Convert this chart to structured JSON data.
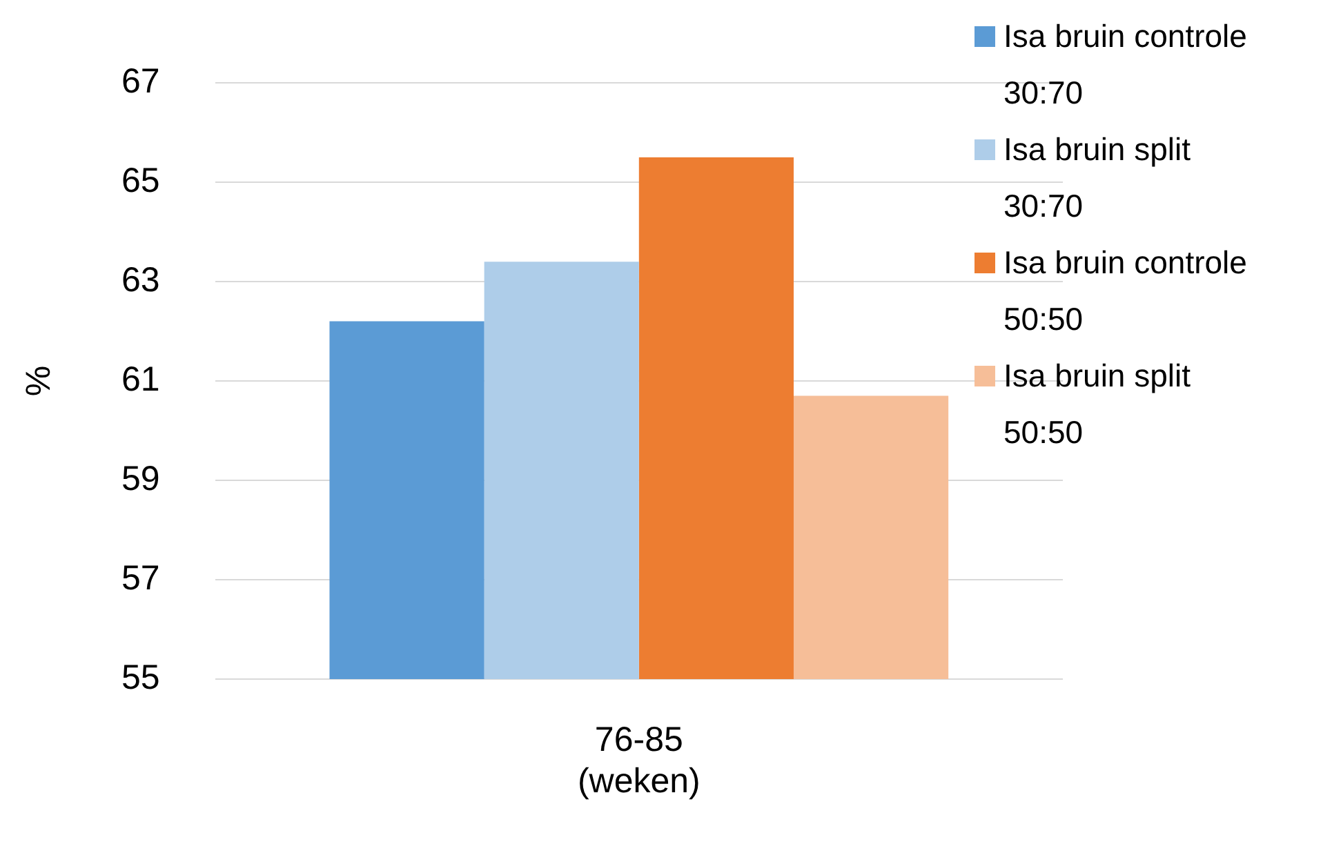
{
  "chart_data": {
    "type": "bar",
    "ylabel": "%",
    "categories": [
      "76-85\n(weken)"
    ],
    "series": [
      {
        "name": "Isa bruin controle 30:70",
        "color": "#5b9bd5",
        "values": [
          62.2
        ]
      },
      {
        "name": "Isa bruin split 30:70",
        "color": "#aecde9",
        "values": [
          63.4
        ]
      },
      {
        "name": "Isa bruin controle 50:50",
        "color": "#ed7d31",
        "values": [
          65.5
        ]
      },
      {
        "name": "Isa bruin split 50:50",
        "color": "#f6be98",
        "values": [
          60.7
        ]
      }
    ],
    "ylim": [
      55,
      67
    ],
    "yticks": [
      55,
      57,
      59,
      61,
      63,
      65,
      67
    ],
    "grid": "y",
    "legend": "right"
  }
}
